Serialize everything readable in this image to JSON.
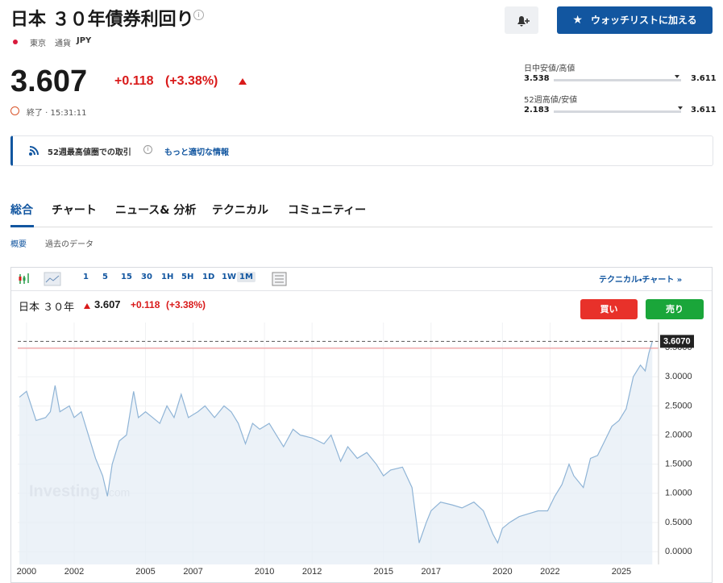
{
  "header": {
    "title": "日本 ３０年債券利回り",
    "exchange": "東京",
    "currency_label": "通貨",
    "currency": "JPY"
  },
  "quote": {
    "price": "3.607",
    "change": "+0.118",
    "change_pct": "(+3.38%)",
    "status": "終了 · 15:31:11"
  },
  "ranges": [
    {
      "label": "日中安値/高値",
      "low": "3.538",
      "high": "3.611"
    },
    {
      "label": "52週高値/安値",
      "low": "2.183",
      "high": "3.611"
    }
  ],
  "watchlist_button": "ウォッチリストに加える",
  "notice": {
    "text": "52週最高値圏での取引",
    "link": "もっと適切な情報"
  },
  "tabs": [
    "総合",
    "チャート",
    "ニュース& 分析",
    "テクニカル",
    "コミュニティー"
  ],
  "subtabs": [
    "概要",
    "過去のデータ"
  ],
  "toolbar": {
    "intervals": [
      "1",
      "5",
      "15",
      "30",
      "1H",
      "5H",
      "1D",
      "1W",
      "1M"
    ],
    "link": "テクニカル・チャート »"
  },
  "chart_header": {
    "name": "日本 ３０年",
    "price": "3.607",
    "change": "+0.118",
    "change_pct": "(+3.38%)",
    "buy": "買い",
    "sell": "売り"
  },
  "chart_data": {
    "type": "area",
    "watermark": "Investing",
    "watermark_suffix": ".com",
    "color": "#8fb4d6",
    "fill": "#e6eef6",
    "x": [
      1999.7,
      2000.0,
      2000.4,
      2000.8,
      2001.0,
      2001.2,
      2001.4,
      2001.8,
      2002.0,
      2002.3,
      2002.6,
      2002.9,
      2003.2,
      2003.4,
      2003.6,
      2003.9,
      2004.2,
      2004.5,
      2004.7,
      2005.0,
      2005.3,
      2005.6,
      2005.9,
      2006.2,
      2006.5,
      2006.8,
      2007.2,
      2007.5,
      2007.9,
      2008.3,
      2008.6,
      2008.9,
      2009.2,
      2009.5,
      2009.8,
      2010.2,
      2010.5,
      2010.8,
      2011.2,
      2011.5,
      2012.0,
      2012.5,
      2012.8,
      2013.2,
      2013.5,
      2013.9,
      2014.3,
      2014.7,
      2015.0,
      2015.3,
      2015.8,
      2016.2,
      2016.5,
      2016.8,
      2017.0,
      2017.4,
      2017.9,
      2018.3,
      2018.8,
      2019.2,
      2019.6,
      2019.8,
      2020.0,
      2020.3,
      2020.7,
      2021.1,
      2021.5,
      2021.9,
      2022.2,
      2022.5,
      2022.8,
      2023.0,
      2023.4,
      2023.7,
      2024.0,
      2024.3,
      2024.6,
      2024.9,
      2025.2,
      2025.5,
      2025.8,
      2026.0,
      2026.15,
      2026.3
    ],
    "values": [
      2.65,
      2.75,
      2.25,
      2.3,
      2.4,
      2.85,
      2.4,
      2.5,
      2.3,
      2.4,
      2.0,
      1.6,
      1.3,
      0.95,
      1.5,
      1.9,
      2.0,
      2.75,
      2.3,
      2.4,
      2.3,
      2.2,
      2.5,
      2.3,
      2.7,
      2.3,
      2.4,
      2.5,
      2.3,
      2.5,
      2.4,
      2.2,
      1.85,
      2.2,
      2.1,
      2.2,
      2.0,
      1.8,
      2.1,
      2.0,
      1.95,
      1.85,
      2.0,
      1.55,
      1.8,
      1.6,
      1.7,
      1.5,
      1.3,
      1.4,
      1.45,
      1.1,
      0.15,
      0.5,
      0.7,
      0.85,
      0.8,
      0.75,
      0.85,
      0.7,
      0.3,
      0.15,
      0.4,
      0.5,
      0.6,
      0.65,
      0.7,
      0.7,
      0.95,
      1.15,
      1.5,
      1.3,
      1.1,
      1.6,
      1.65,
      1.9,
      2.15,
      2.25,
      2.45,
      3.0,
      3.2,
      3.1,
      3.4,
      3.607
    ],
    "xlim": [
      1999.63,
      2026.56
    ],
    "ylim": [
      -0.22,
      3.93
    ],
    "xticks": [
      2000,
      2002,
      2005,
      2007,
      2010,
      2012,
      2015,
      2017,
      2020,
      2022,
      2025
    ],
    "yticks": [
      {
        "value": 0,
        "label": "0.0000"
      },
      {
        "value": 0.5,
        "label": "0.5000"
      },
      {
        "value": 1,
        "label": "1.0000"
      },
      {
        "value": 1.5,
        "label": "1.5000"
      },
      {
        "value": 2,
        "label": "2.0000"
      },
      {
        "value": 2.5,
        "label": "2.5000"
      },
      {
        "value": 3,
        "label": "3.0000"
      },
      {
        "value": 3.5,
        "label": "3.5000"
      }
    ],
    "previous_close": 3.489,
    "last": {
      "value": 3.607,
      "label": "3.6070"
    },
    "grid": true
  }
}
